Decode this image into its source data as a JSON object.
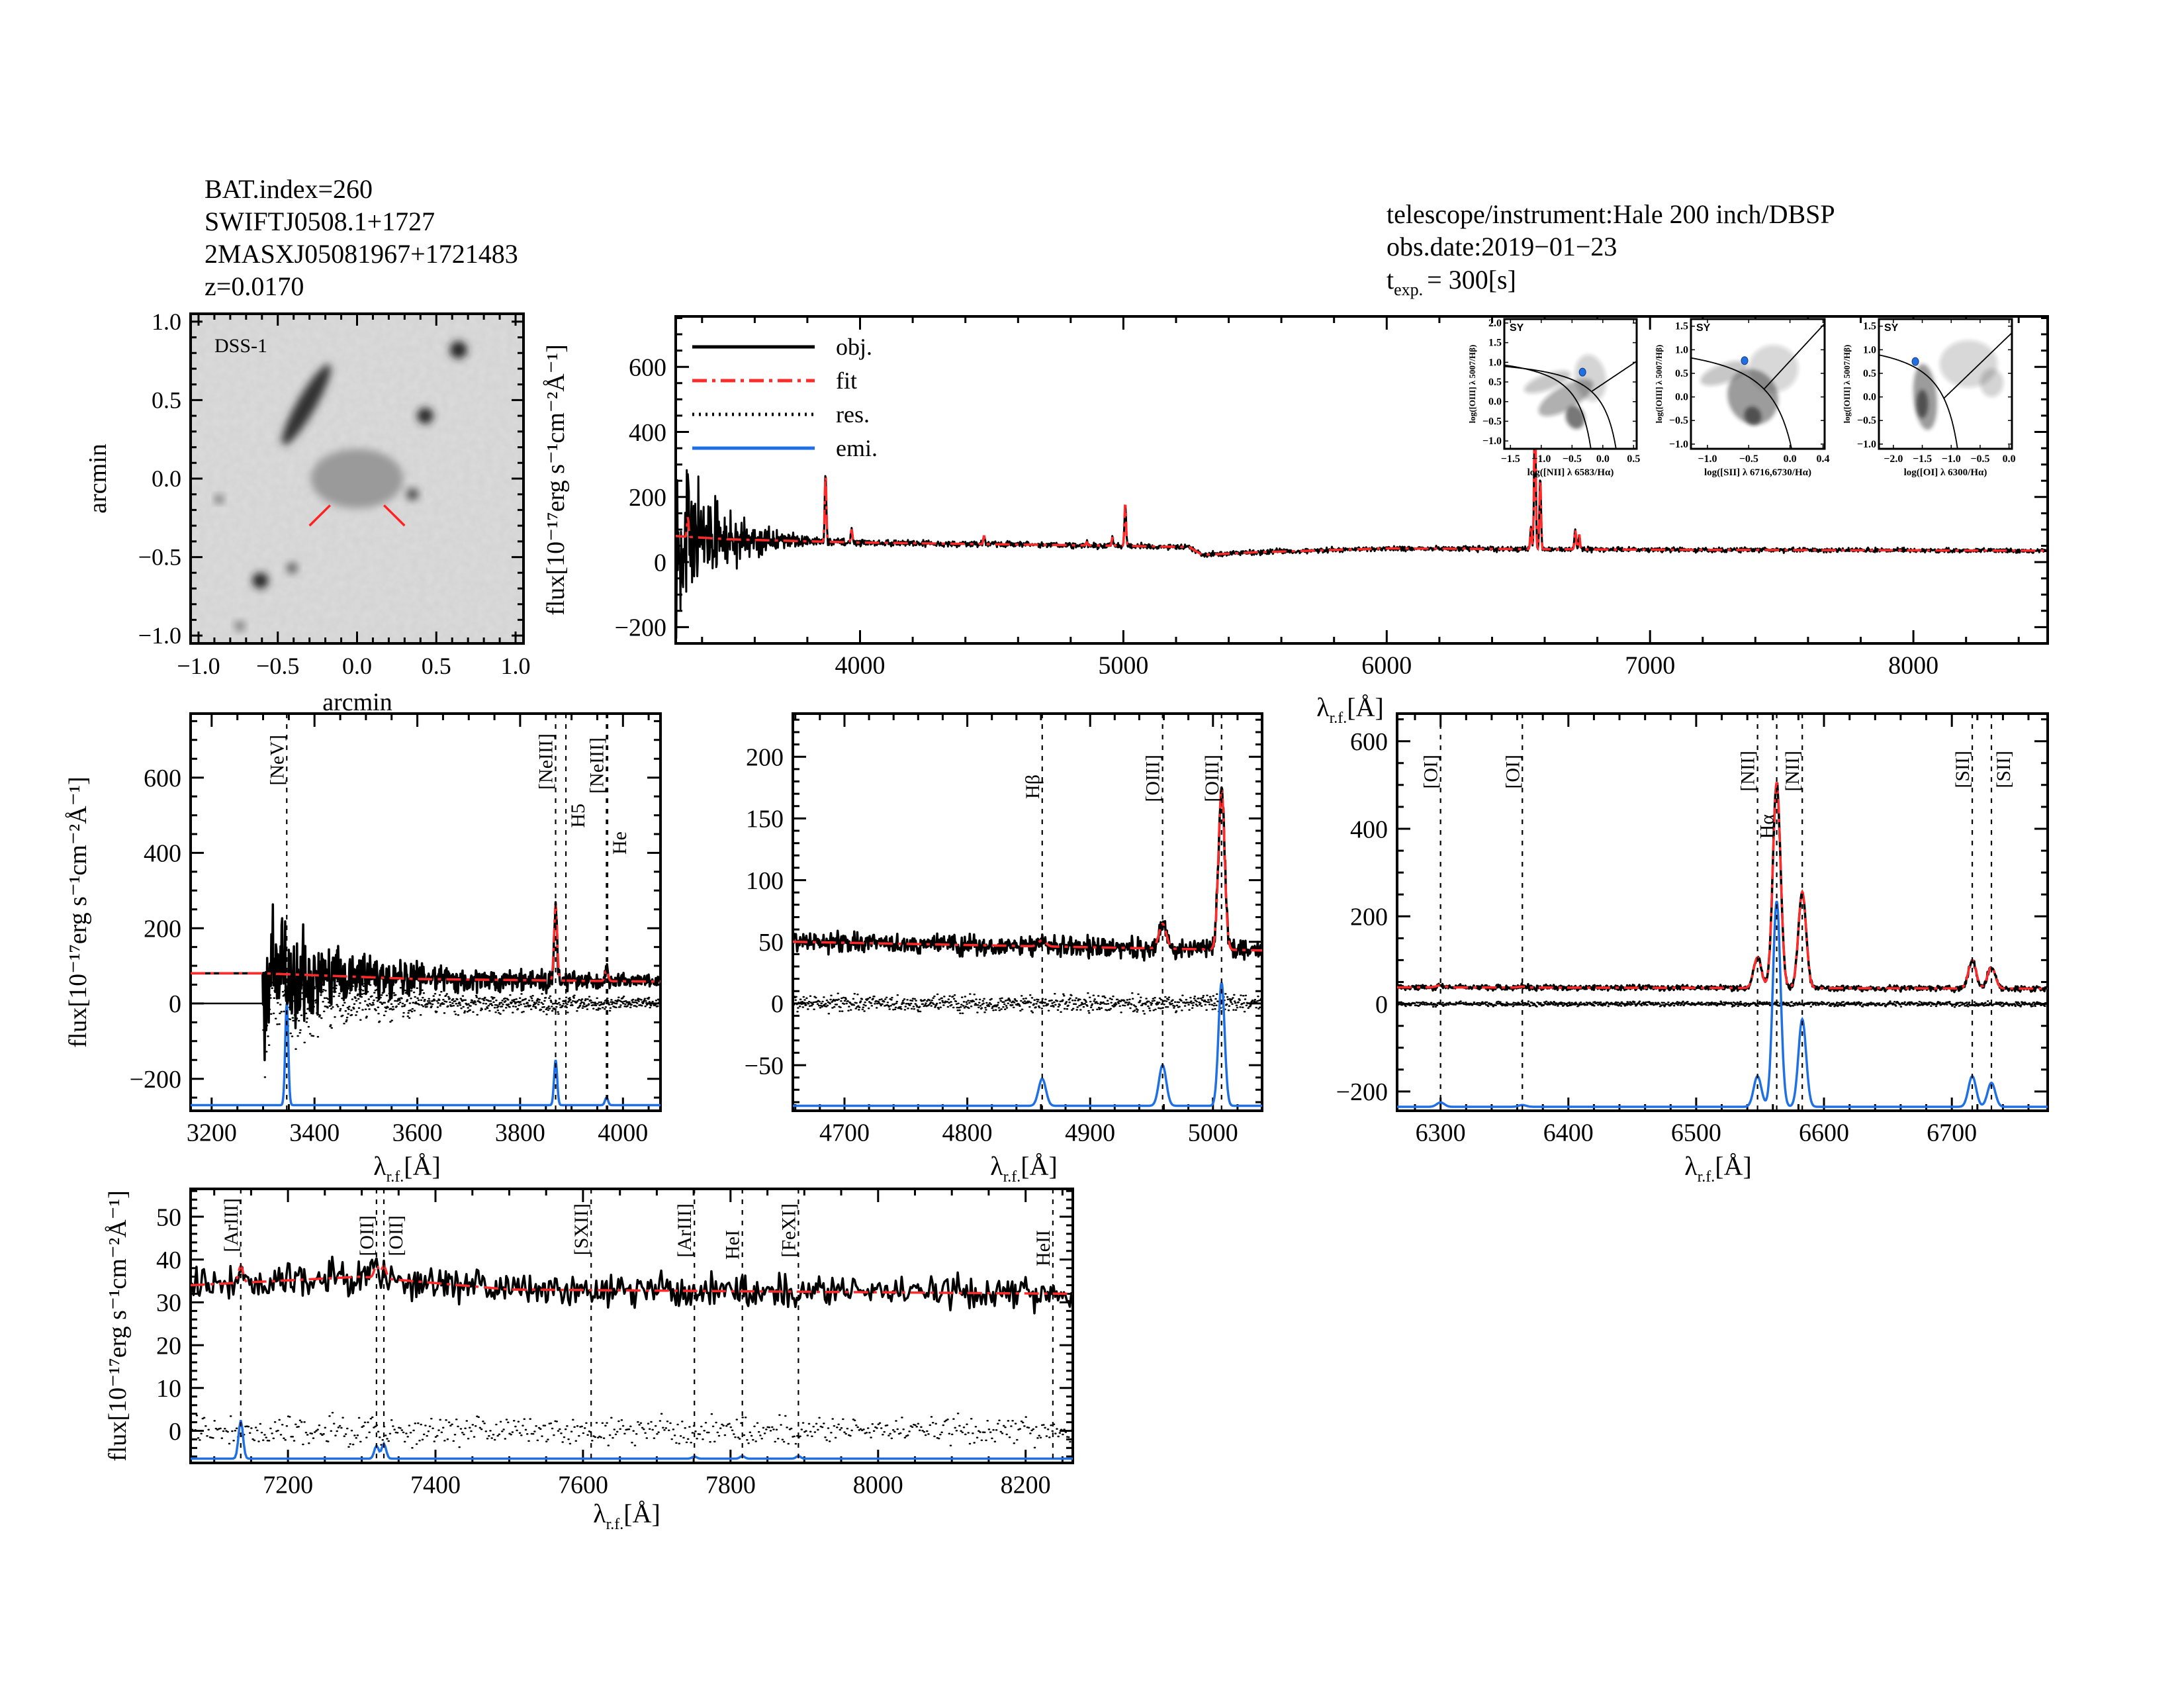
{
  "header": {
    "left": [
      "BAT.index=260",
      "SWIFTJ0508.1+1727",
      "2MASXJ05081967+1721483",
      "z=0.0170"
    ],
    "right": [
      "telescope/instrument:Hale 200 inch/DBSP",
      "obs.date:2019−01−23"
    ],
    "texp": {
      "symbol": "t",
      "sub": "exp.",
      "value": "=  300[s]"
    }
  },
  "axis_labels": {
    "wavelength": {
      "symbol": "λ",
      "sub": "r.f.",
      "unit": "[Å]"
    },
    "flux": "flux[10⁻¹⁷erg s⁻¹cm⁻²Å⁻¹]"
  },
  "colors": {
    "obj": "#000000",
    "fit": "#ff2a2a",
    "res": "#000000",
    "emi": "#1f6fe5",
    "marker_red": "#ff2a2a",
    "sy": "#1f6fe5"
  },
  "image_panel": {
    "label": "DSS-1",
    "xlabel": "arcmin",
    "ylabel": "arcmin",
    "xlim": [
      -1.05,
      1.05
    ],
    "ylim": [
      -1.05,
      1.05
    ],
    "xticks": [
      "−1.0",
      "−0.5",
      "0.0",
      "0.5",
      "1.0"
    ],
    "yticks": [
      "−1.0",
      "−0.5",
      "0.0",
      "0.5",
      "1.0"
    ],
    "tick_values": [
      -1.0,
      -0.5,
      0.0,
      0.5,
      1.0
    ]
  },
  "bpt_diagrams": [
    {
      "class_label": "SY",
      "xlabel": "log([NII] λ 6583/Hα)",
      "ylabel": "log([OIII] λ 5007/Hβ)",
      "xlim": [
        -1.6,
        0.55
      ],
      "ylim": [
        -1.2,
        2.1
      ],
      "xticks": [
        -1.5,
        -1.0,
        -0.5,
        0.0,
        0.5
      ],
      "xtick_labels": [
        "−1.5",
        "−1.0",
        "−0.5",
        "0.0",
        "0.5"
      ],
      "yticks": [
        -1.0,
        -0.5,
        0.0,
        0.5,
        1.0,
        1.5,
        2.0
      ],
      "ytick_labels": [
        "−1.0",
        "−0.5",
        "0.0",
        "0.5",
        "1.0",
        "1.5",
        "2.0"
      ],
      "point": [
        -0.33,
        0.75
      ]
    },
    {
      "class_label": "SY",
      "xlabel": "log([SII] λ 6716,6730/Hα)",
      "ylabel": "log([OIII] λ 5007/Hβ)",
      "xlim": [
        -1.2,
        0.42
      ],
      "ylim": [
        -1.1,
        1.65
      ],
      "xticks": [
        -1.0,
        -0.5,
        0.0,
        0.4
      ],
      "xtick_labels": [
        "−1.0",
        "−0.5",
        "0.0",
        "0.4"
      ],
      "yticks": [
        -1.0,
        -0.5,
        0.0,
        0.5,
        1.0,
        1.5
      ],
      "ytick_labels": [
        "−1.0",
        "−0.5",
        "0.0",
        "0.5",
        "1.0",
        "1.5"
      ],
      "point": [
        -0.55,
        0.77
      ]
    },
    {
      "class_label": "SY",
      "xlabel": "log([OI] λ 6300/Hα)",
      "ylabel": "log([OIII] λ 5007/Hβ)",
      "xlim": [
        -2.25,
        0.05
      ],
      "ylim": [
        -1.1,
        1.65
      ],
      "xticks": [
        -2.0,
        -1.5,
        -1.0,
        -0.5,
        0.0
      ],
      "xtick_labels": [
        "−2.0",
        "−1.5",
        "−1.0",
        "−0.5",
        "0.0"
      ],
      "yticks": [
        -1.0,
        -0.5,
        0.0,
        0.5,
        1.0,
        1.5
      ],
      "ytick_labels": [
        "−1.0",
        "−0.5",
        "0.0",
        "0.5",
        "1.0",
        "1.5"
      ],
      "point": [
        -1.62,
        0.75
      ]
    }
  ],
  "chart_data": [
    {
      "type": "line",
      "panel": "full spectrum",
      "xlim": [
        3300,
        8510
      ],
      "ylim": [
        -250,
        755
      ],
      "xticks": [
        4000,
        5000,
        6000,
        7000,
        8000
      ],
      "yticks": [
        -200,
        0,
        200,
        400,
        600
      ],
      "legend": {
        "placement": "top-left",
        "entries": [
          "obj.",
          "fit",
          "res.",
          "emi."
        ]
      },
      "continuum": [
        [
          3300,
          80
        ],
        [
          3500,
          70
        ],
        [
          4000,
          60
        ],
        [
          4500,
          55
        ],
        [
          5000,
          50
        ],
        [
          5250,
          46
        ],
        [
          5300,
          22
        ],
        [
          5500,
          30
        ],
        [
          6000,
          42
        ],
        [
          7000,
          38
        ],
        [
          8510,
          35
        ]
      ],
      "noise": [
        [
          3300,
          150
        ],
        [
          3400,
          80
        ],
        [
          3600,
          30
        ],
        [
          3800,
          10
        ],
        [
          4000,
          6
        ],
        [
          8510,
          4
        ]
      ],
      "lines": [
        {
          "wave": 3346,
          "peak": 60
        },
        {
          "wave": 3869,
          "peak": 210
        },
        {
          "wave": 3968,
          "peak": 40
        },
        {
          "wave": 4471,
          "peak": 25
        },
        {
          "wave": 4861,
          "peak": 10
        },
        {
          "wave": 4959,
          "peak": 25
        },
        {
          "wave": 5007,
          "peak": 130
        },
        {
          "wave": 6300,
          "peak": 5
        },
        {
          "wave": 6548,
          "peak": 70
        },
        {
          "wave": 6563,
          "peak": 470
        },
        {
          "wave": 6583,
          "peak": 220
        },
        {
          "wave": 6716,
          "peak": 60
        },
        {
          "wave": 6731,
          "peak": 45
        }
      ]
    },
    {
      "type": "line",
      "panel": "[NeV]-[NeIII] region",
      "xlim": [
        3159,
        4073
      ],
      "ylim": [
        -285,
        770
      ],
      "xticks": [
        3200,
        3400,
        3600,
        3800,
        4000
      ],
      "yticks": [
        -200,
        0,
        200,
        400,
        600
      ],
      "continuum": [
        [
          3300,
          80
        ],
        [
          3600,
          65
        ],
        [
          4073,
          58
        ]
      ],
      "noise": [
        [
          3159,
          0
        ],
        [
          3299,
          0
        ],
        [
          3300,
          130
        ],
        [
          3400,
          60
        ],
        [
          3500,
          35
        ],
        [
          3700,
          20
        ],
        [
          4073,
          10
        ]
      ],
      "lines": [
        {
          "wave": 3869,
          "peak": 200
        },
        {
          "wave": 3968,
          "peak": 30
        }
      ],
      "emission_baseline": -270,
      "emission": [
        {
          "wave": 3346,
          "amp": 270
        },
        {
          "wave": 3869,
          "amp": 120
        },
        {
          "wave": 3968,
          "amp": 20
        }
      ],
      "markers": [
        {
          "label": "[NeV]",
          "wave": 3346,
          "color": "black"
        },
        {
          "label": "[NeIII]",
          "wave": 3869,
          "color": "black"
        },
        {
          "label": "H5",
          "wave": 3889,
          "color": "red"
        },
        {
          "label": "[NeIII]",
          "wave": 3968,
          "color": "red"
        },
        {
          "label": "He",
          "wave": 3970,
          "color": "red"
        }
      ]
    },
    {
      "type": "line",
      "panel": "Hβ-[OIII] region",
      "xlim": [
        4658,
        5040
      ],
      "ylim": [
        -87,
        235
      ],
      "xticks": [
        4700,
        4800,
        4900,
        5000
      ],
      "yticks": [
        -50,
        0,
        50,
        100,
        150,
        200
      ],
      "continuum": [
        [
          4658,
          50
        ],
        [
          5040,
          43
        ]
      ],
      "noise": [
        [
          4658,
          5
        ],
        [
          5040,
          5
        ]
      ],
      "lines": [
        {
          "wave": 4861,
          "peak": 5
        },
        {
          "wave": 4959,
          "peak": 20
        },
        {
          "wave": 5007,
          "peak": 130,
          "sigma": 2.5
        }
      ],
      "emission_baseline": -83,
      "emission": [
        {
          "wave": 4861,
          "amp": 22
        },
        {
          "wave": 4959,
          "amp": 33
        },
        {
          "wave": 5007,
          "amp": 100,
          "sigma": 2.5
        }
      ],
      "markers": [
        {
          "label": "Hβ",
          "wave": 4861,
          "color": "black"
        },
        {
          "label": "[OIII]",
          "wave": 4959,
          "color": "black"
        },
        {
          "label": "[OIII]",
          "wave": 5007,
          "color": "black"
        }
      ]
    },
    {
      "type": "line",
      "panel": "Hα-[NII]-[SII] region",
      "xlim": [
        6266,
        6775
      ],
      "ylim": [
        -244,
        663
      ],
      "xticks": [
        6300,
        6400,
        6500,
        6600,
        6700
      ],
      "yticks": [
        -200,
        0,
        200,
        400,
        600
      ],
      "continuum": [
        [
          6266,
          38
        ],
        [
          6775,
          35
        ]
      ],
      "noise": [
        [
          6266,
          4
        ],
        [
          6775,
          4
        ]
      ],
      "lines": [
        {
          "wave": 6300,
          "peak": 5
        },
        {
          "wave": 6364,
          "peak": 2
        },
        {
          "wave": 6548,
          "peak": 70
        },
        {
          "wave": 6563,
          "peak": 470
        },
        {
          "wave": 6583,
          "peak": 220
        },
        {
          "wave": 6716,
          "peak": 65
        },
        {
          "wave": 6731,
          "peak": 50
        }
      ],
      "emission_baseline": -235,
      "emission": [
        {
          "wave": 6300,
          "amp": 10
        },
        {
          "wave": 6364,
          "amp": 4
        },
        {
          "wave": 6548,
          "amp": 70
        },
        {
          "wave": 6563,
          "amp": 470
        },
        {
          "wave": 6583,
          "amp": 200
        },
        {
          "wave": 6716,
          "amp": 70
        },
        {
          "wave": 6731,
          "amp": 55
        }
      ],
      "markers": [
        {
          "label": "[OI]",
          "wave": 6300,
          "color": "black"
        },
        {
          "label": "[OI]",
          "wave": 6364,
          "color": "black"
        },
        {
          "label": "[NII]",
          "wave": 6548,
          "color": "black"
        },
        {
          "label": "Hα",
          "wave": 6563,
          "color": "black"
        },
        {
          "label": "[NII]",
          "wave": 6583,
          "color": "black"
        },
        {
          "label": "[SII]",
          "wave": 6716,
          "color": "black"
        },
        {
          "label": "[SII]",
          "wave": 6731,
          "color": "black"
        }
      ]
    },
    {
      "type": "line",
      "panel": "red region",
      "xlim": [
        7068,
        8264
      ],
      "ylim": [
        -7.5,
        56.5
      ],
      "xticks": [
        7200,
        7400,
        7600,
        7800,
        8000,
        8200
      ],
      "yticks": [
        0,
        10,
        20,
        30,
        40,
        50
      ],
      "continuum": [
        [
          7068,
          34
        ],
        [
          7300,
          36
        ],
        [
          7500,
          33
        ],
        [
          8264,
          32
        ]
      ],
      "noise": [
        [
          7068,
          2.5
        ],
        [
          8264,
          2.5
        ]
      ],
      "lines": [
        {
          "wave": 7136,
          "peak": 4
        },
        {
          "wave": 7320,
          "peak": 3
        },
        {
          "wave": 7330,
          "peak": 3
        }
      ],
      "emission_baseline": -6.5,
      "emission": [
        {
          "wave": 7136,
          "amp": 9
        },
        {
          "wave": 7320,
          "amp": 3
        },
        {
          "wave": 7330,
          "amp": 3.5
        },
        {
          "wave": 7751,
          "amp": 0.5
        },
        {
          "wave": 7816,
          "amp": 0.6
        },
        {
          "wave": 7892,
          "amp": 0.6
        }
      ],
      "markers": [
        {
          "label": "[ArIII]",
          "wave": 7136,
          "color": "black"
        },
        {
          "label": "[OII]",
          "wave": 7320,
          "color": "red"
        },
        {
          "label": "[OII]",
          "wave": 7330,
          "color": "black"
        },
        {
          "label": "[SXII]",
          "wave": 7611,
          "color": "red"
        },
        {
          "label": "[ArIII]",
          "wave": 7751,
          "color": "red"
        },
        {
          "label": "HeI",
          "wave": 7816,
          "color": "red"
        },
        {
          "label": "[FeXI]",
          "wave": 7892,
          "color": "red"
        },
        {
          "label": "HeII",
          "wave": 8237,
          "color": "red"
        }
      ]
    }
  ]
}
